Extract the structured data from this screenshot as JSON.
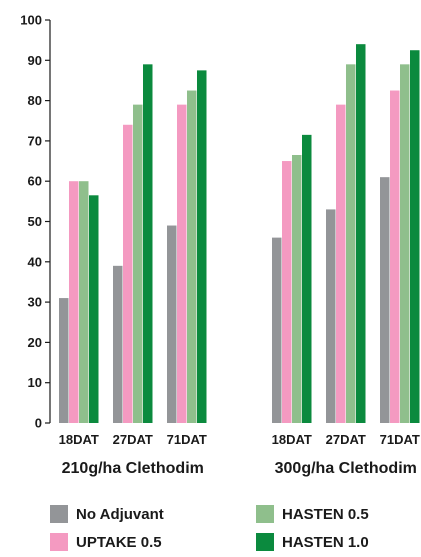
{
  "chart_data": {
    "type": "bar",
    "title": "",
    "xlabel": "",
    "ylabel": "",
    "ylim": [
      0,
      100
    ],
    "yticks": [
      "0",
      "10",
      "20",
      "30",
      "40",
      "50",
      "60",
      "70",
      "80",
      "90",
      "100"
    ],
    "grid": false,
    "legend_position": "bottom",
    "groups": [
      {
        "label": "210g/ha Clethodim",
        "categories": [
          "18DAT",
          "27DAT",
          "71DAT"
        ]
      },
      {
        "label": "300g/ha Clethodim",
        "categories": [
          "18DAT",
          "27DAT",
          "71DAT"
        ]
      }
    ],
    "series": [
      {
        "name": "No Adjuvant",
        "color": "#939598",
        "values": [
          31,
          39,
          49,
          46,
          53,
          61
        ]
      },
      {
        "name": "UPTAKE 0.5",
        "color": "#f49ac1",
        "values": [
          60,
          74,
          79,
          65,
          79,
          82.5
        ]
      },
      {
        "name": "HASTEN 0.5",
        "color": "#8fbf8c",
        "values": [
          60,
          79,
          82.5,
          66.5,
          89,
          89
        ]
      },
      {
        "name": "HASTEN 1.0",
        "color": "#0b8a3e",
        "values": [
          56.5,
          89,
          87.5,
          71.5,
          94,
          92.5
        ]
      }
    ]
  }
}
